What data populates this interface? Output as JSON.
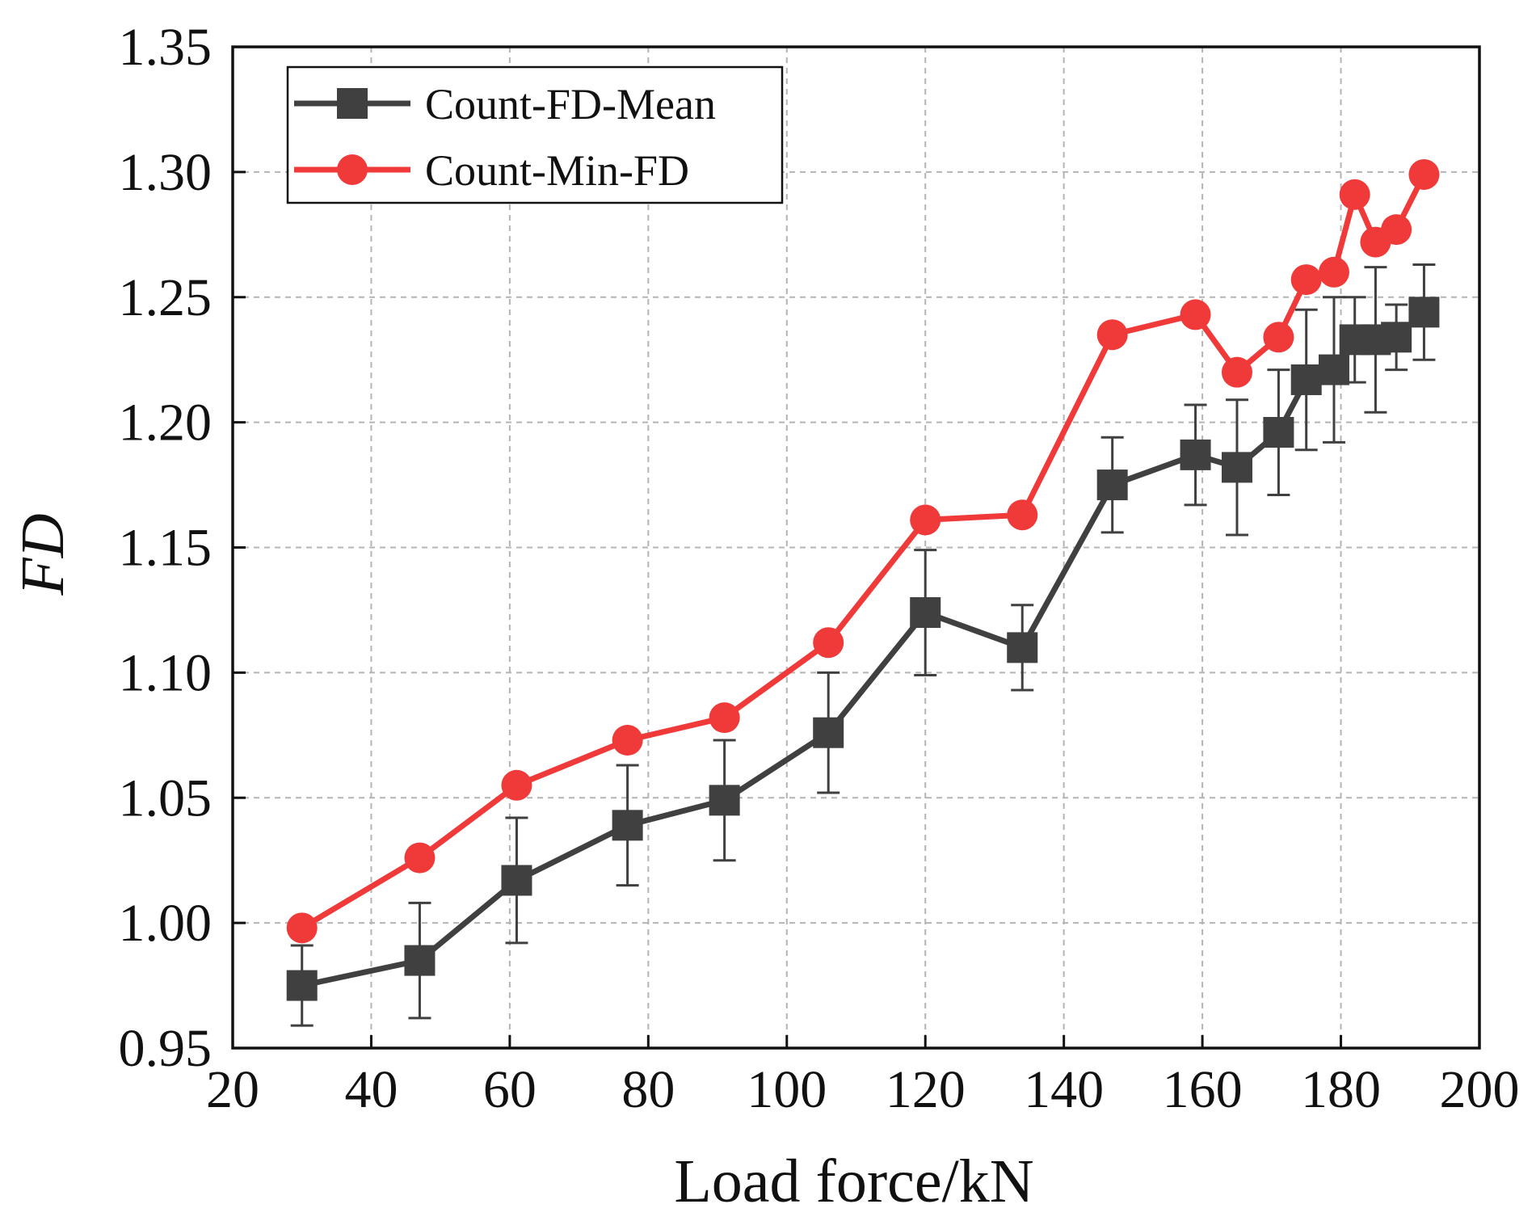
{
  "chart_data": {
    "type": "line",
    "xlabel": "Load force/kN",
    "ylabel": "FD",
    "xlim": [
      20,
      200
    ],
    "ylim": [
      0.95,
      1.35
    ],
    "x_ticks": [
      20,
      40,
      60,
      80,
      100,
      120,
      140,
      160,
      180,
      200
    ],
    "y_ticks": [
      "0.95",
      "1.00",
      "1.05",
      "1.10",
      "1.15",
      "1.20",
      "1.25",
      "1.30",
      "1.35"
    ],
    "grid": true,
    "legend_position": "top-left",
    "series": [
      {
        "name": "Count-FD-Mean",
        "color": "#404040",
        "marker": "square",
        "x": [
          30,
          47,
          61,
          77,
          91,
          106,
          120,
          134,
          147,
          159,
          165,
          171,
          175,
          179,
          182,
          185,
          188,
          192
        ],
        "y": [
          0.975,
          0.985,
          1.017,
          1.039,
          1.049,
          1.076,
          1.124,
          1.11,
          1.175,
          1.187,
          1.182,
          1.196,
          1.217,
          1.221,
          1.233,
          1.233,
          1.234,
          1.244
        ],
        "error": [
          0.016,
          0.023,
          0.025,
          0.024,
          0.024,
          0.024,
          0.025,
          0.017,
          0.019,
          0.02,
          0.027,
          0.025,
          0.028,
          0.029,
          0.017,
          0.029,
          0.013,
          0.019
        ]
      },
      {
        "name": "Count-Min-FD",
        "color": "#f03a3a",
        "marker": "circle",
        "x": [
          30,
          47,
          61,
          77,
          91,
          106,
          120,
          134,
          147,
          159,
          165,
          171,
          175,
          179,
          182,
          185,
          188,
          192
        ],
        "y": [
          0.998,
          1.026,
          1.055,
          1.073,
          1.082,
          1.112,
          1.161,
          1.163,
          1.235,
          1.243,
          1.22,
          1.234,
          1.257,
          1.26,
          1.291,
          1.272,
          1.277,
          1.299
        ]
      }
    ]
  }
}
